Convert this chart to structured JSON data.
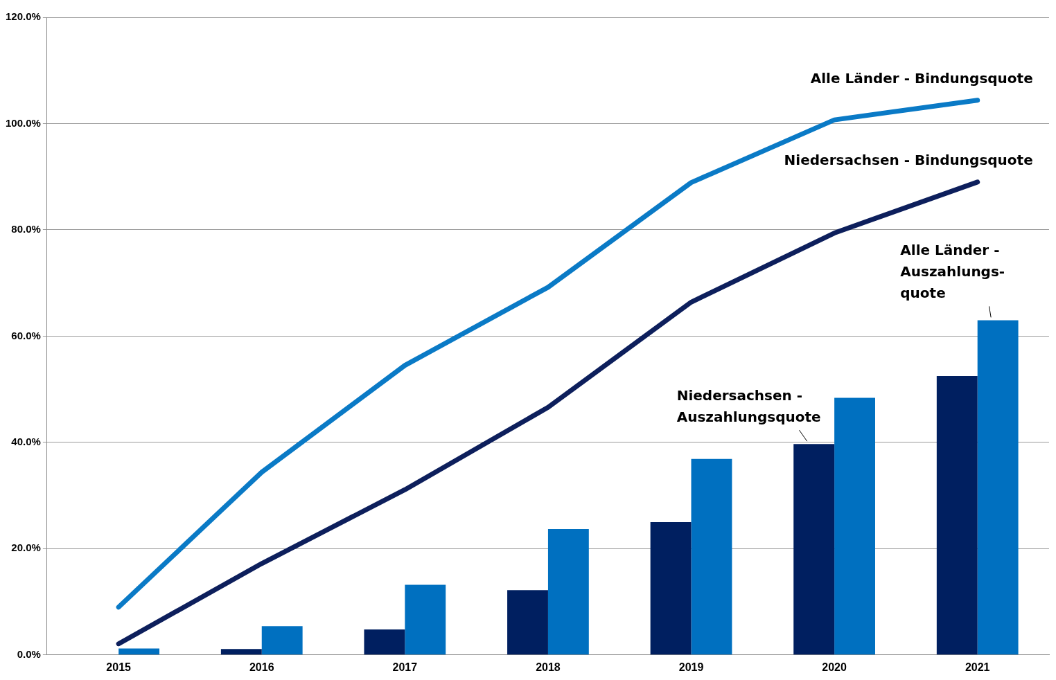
{
  "chart_data": {
    "type": "bar",
    "categories": [
      "2015",
      "2016",
      "2017",
      "2018",
      "2019",
      "2020",
      "2021"
    ],
    "series": [
      {
        "type": "line",
        "name": "Alle Länder - Bindungsquote",
        "color": "#0a7ac6",
        "values": [
          9.0,
          34.4,
          54.5,
          69.2,
          88.9,
          100.7,
          104.4
        ]
      },
      {
        "type": "line",
        "name": "Niedersachsen - Bindungsquote",
        "color": "#0d1f5c",
        "values": [
          2.1,
          17.2,
          31.1,
          46.6,
          66.4,
          79.4,
          89.0
        ]
      },
      {
        "name": "Niedersachsen -\nAuszahlungsquote",
        "color": "#001f60",
        "values": [
          null,
          1.1,
          4.8,
          12.2,
          25.0,
          39.7,
          52.5
        ]
      },
      {
        "name": "Alle Länder -\nAuszahlungs-\nquote",
        "color": "#0070c0",
        "values": [
          1.2,
          5.4,
          13.2,
          23.7,
          36.9,
          48.4,
          63.0
        ]
      }
    ],
    "ylim": [
      0,
      120
    ],
    "yticks": [
      {
        "value": 0,
        "label": "0.0%"
      },
      {
        "value": 20,
        "label": "20.0%"
      },
      {
        "value": 40,
        "label": "40.0%"
      },
      {
        "value": 60,
        "label": "60.0%"
      },
      {
        "value": 80,
        "label": "80.0%"
      },
      {
        "value": 100,
        "label": "100.0%"
      },
      {
        "value": 120,
        "label": "120.0%"
      }
    ],
    "grid": "y",
    "legend": false,
    "marker": "none",
    "line_style": "solid"
  }
}
